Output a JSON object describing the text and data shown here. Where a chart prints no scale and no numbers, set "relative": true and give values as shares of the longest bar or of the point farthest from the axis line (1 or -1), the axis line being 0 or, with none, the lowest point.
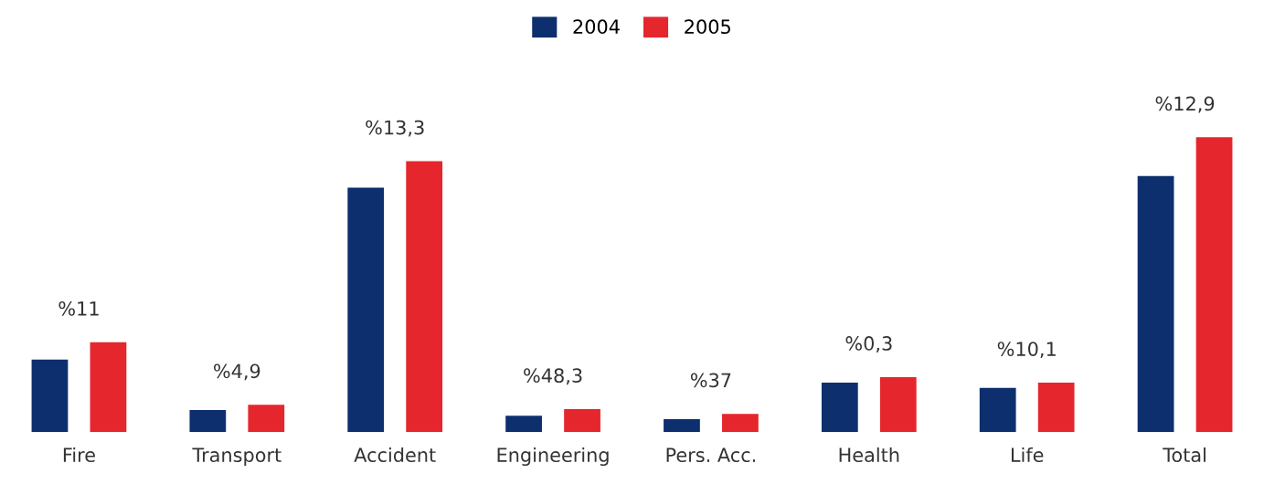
{
  "chart_data": {
    "type": "bar",
    "relative": true,
    "categories": [
      "Fire",
      "Transport",
      "Accident",
      "Engineering",
      "Pers. Acc.",
      "Health",
      "Life",
      "Total"
    ],
    "series": [
      {
        "name": "2004",
        "color": "#0d2f6e",
        "values": [
          0.246,
          0.075,
          0.829,
          0.056,
          0.044,
          0.168,
          0.15,
          0.869
        ]
      },
      {
        "name": "2005",
        "color": "#e5262d",
        "values": [
          0.305,
          0.093,
          0.919,
          0.078,
          0.062,
          0.187,
          0.168,
          1.0
        ]
      }
    ],
    "annotations": [
      "%11",
      "%4,9",
      "%13,3",
      "%48,3",
      "%37",
      "%0,3",
      "%10,1",
      "%12,9"
    ],
    "legend": "top",
    "grid": false
  }
}
